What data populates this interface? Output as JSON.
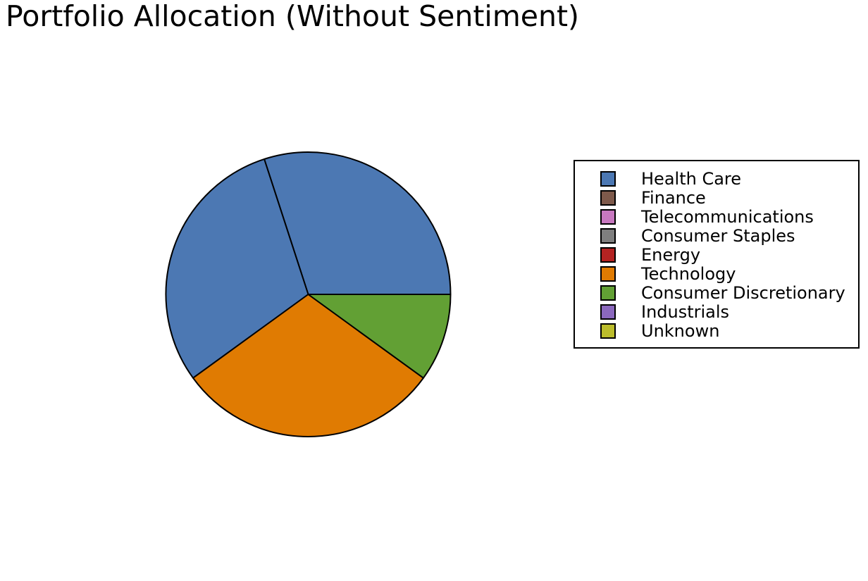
{
  "chart_data": {
    "type": "pie",
    "title": "Portfolio Allocation (Without Sentiment)",
    "start_angle_deg": 0,
    "direction": "counterclockwise",
    "slice_edge_color": "#000000",
    "legend": {
      "placement": "right"
    },
    "slices": [
      {
        "label": "Health Care",
        "value": 30,
        "color": "#4c78b3"
      },
      {
        "label": "Health Care",
        "value": 30,
        "color": "#4c78b3"
      },
      {
        "label": "Technology",
        "value": 30,
        "color": "#e07b02"
      },
      {
        "label": "Consumer Discretionary",
        "value": 10,
        "color": "#62a034"
      }
    ],
    "legend_entries": [
      {
        "label": "Health Care",
        "color": "#4c78b3"
      },
      {
        "label": "Finance",
        "color": "#7e5a4b"
      },
      {
        "label": "Telecommunications",
        "color": "#c878c0"
      },
      {
        "label": "Consumer Staples",
        "color": "#7f7f7f"
      },
      {
        "label": "Energy",
        "color": "#b42322"
      },
      {
        "label": "Technology",
        "color": "#e07b02"
      },
      {
        "label": "Consumer Discretionary",
        "color": "#62a034"
      },
      {
        "label": "Industrials",
        "color": "#8b68be"
      },
      {
        "label": "Unknown",
        "color": "#bcbd2c"
      }
    ]
  }
}
